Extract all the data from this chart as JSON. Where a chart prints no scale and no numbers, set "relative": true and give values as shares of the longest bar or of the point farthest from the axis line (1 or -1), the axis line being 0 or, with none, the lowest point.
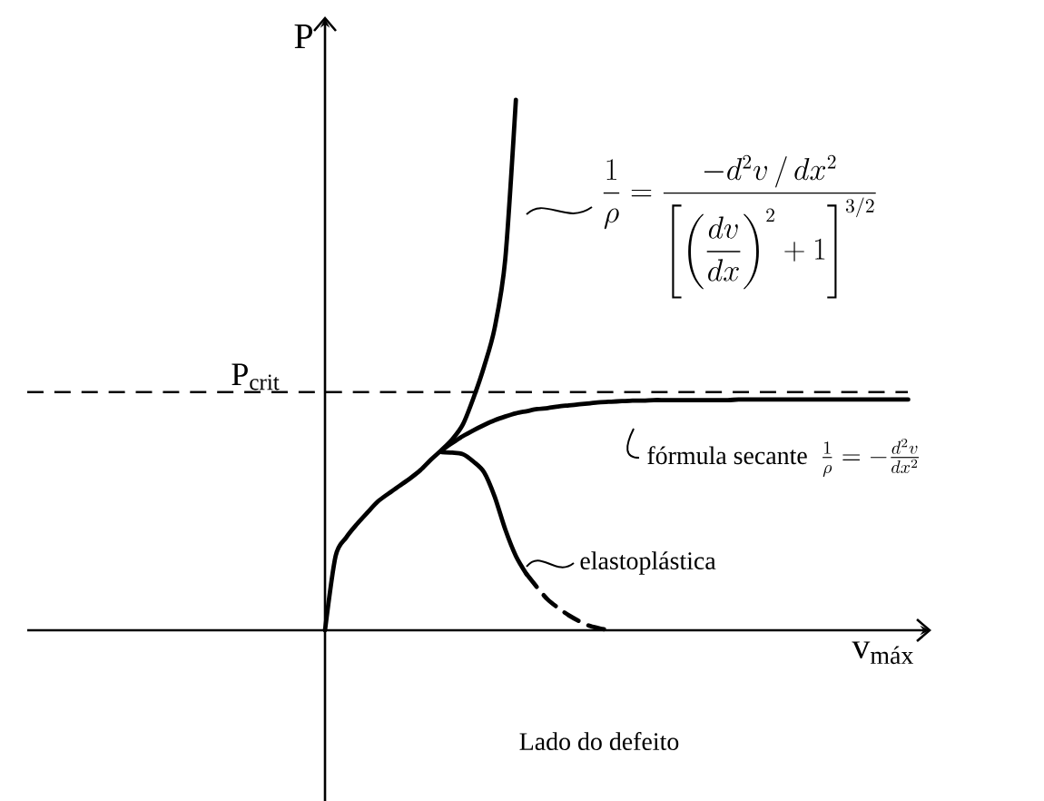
{
  "chart_data": {
    "type": "line",
    "relative": true,
    "xlabel": "v$_{máx}$",
    "ylabel": "P",
    "categories": [
      null,
      null,
      null,
      null,
      null,
      null,
      null,
      null,
      null,
      null,
      null,
      null,
      null,
      null,
      null,
      null,
      null,
      null,
      null,
      null,
      null,
      null,
      null,
      null,
      null,
      null,
      null,
      null,
      null,
      null,
      null,
      null,
      null,
      null,
      null,
      null,
      null,
      null,
      null,
      null,
      null,
      null,
      null,
      null,
      null,
      null,
      null,
      null,
      null,
      null,
      null,
      null,
      null,
      null,
      null,
      null
    ],
    "series": [
      {
        "color": "#000000",
        "line_style": "solid",
        "values": [
          0,
          0.14,
          0.175,
          0.2,
          0.222,
          0.243,
          0.258,
          0.272,
          0.286,
          0.302,
          0.322,
          0.34,
          0.36,
          0.388,
          0.438,
          0.497,
          0.57,
          0.7,
          1.0,
          null,
          null,
          null,
          null,
          null,
          null,
          null,
          null,
          null,
          null,
          null,
          null,
          null,
          null,
          null,
          null,
          null,
          null,
          null,
          null,
          null,
          null,
          null,
          null,
          null,
          null,
          null,
          null,
          null,
          null,
          null,
          null,
          null,
          null,
          null,
          null,
          null
        ]
      },
      {
        "color": "#000000",
        "line_style": "solid",
        "values": [
          null,
          null,
          null,
          null,
          null,
          null,
          null,
          null,
          null,
          null,
          null,
          0.339,
          0.353,
          0.366,
          0.377,
          0.387,
          0.396,
          0.403,
          0.409,
          0.413,
          0.417,
          0.419,
          0.422,
          0.424,
          0.426,
          0.428,
          0.43,
          0.431,
          0.432,
          0.433,
          0.433,
          0.434,
          0.434,
          0.434,
          0.434,
          0.434,
          0.434,
          0.434,
          0.434,
          0.435,
          0.435,
          0.435,
          0.435,
          0.435,
          0.435,
          0.435,
          0.435,
          0.435,
          0.435,
          0.435,
          0.435,
          0.435,
          0.435,
          0.435,
          0.435,
          0.435
        ]
      },
      {
        "color": "#000000",
        "line_style": "solid",
        "values": [
          null,
          null,
          null,
          null,
          null,
          null,
          null,
          null,
          null,
          null,
          null,
          0.336,
          0.335,
          0.332,
          0.318,
          0.298,
          0.252,
          0.19,
          0.14,
          0.106,
          null,
          null,
          null,
          null,
          null,
          null,
          null,
          null,
          null,
          null,
          null,
          null,
          null,
          null,
          null,
          null,
          null,
          null,
          null,
          null,
          null,
          null,
          null,
          null,
          null,
          null,
          null,
          null,
          null,
          null,
          null,
          null,
          null,
          null,
          null,
          null
        ]
      },
      {
        "color": "#000000",
        "line_style": "dashed",
        "values": [
          null,
          null,
          null,
          null,
          null,
          null,
          null,
          null,
          null,
          null,
          null,
          null,
          null,
          null,
          null,
          null,
          null,
          null,
          null,
          0.106,
          0.081,
          0.058,
          0.042,
          0.028,
          0.017,
          0.008,
          0.003,
          0,
          null,
          null,
          null,
          null,
          null,
          null,
          null,
          null,
          null,
          null,
          null,
          null,
          null,
          null,
          null,
          null,
          null,
          null,
          null,
          null,
          null,
          null,
          null,
          null,
          null,
          null,
          null,
          null
        ]
      }
    ],
    "ref_lines": [
      {
        "axis": "y",
        "value": 0.449,
        "label": "P$_{crit}$",
        "line_style": "dashed",
        "color": "#000000"
      }
    ],
    "annotations": [
      "\\frac{1}{\\rho}=\\frac{-d^2v\\,/\\,dx^2}{\\left[\\left(\\dfrac{dv}{dx}\\right)^2+1\\right]^{3/2}}",
      "fórmula secante",
      "\\frac{1}{\\rho}=-\\frac{d^2v}{dx^2}",
      "elastoplástica",
      "Lado do defeito"
    ]
  }
}
